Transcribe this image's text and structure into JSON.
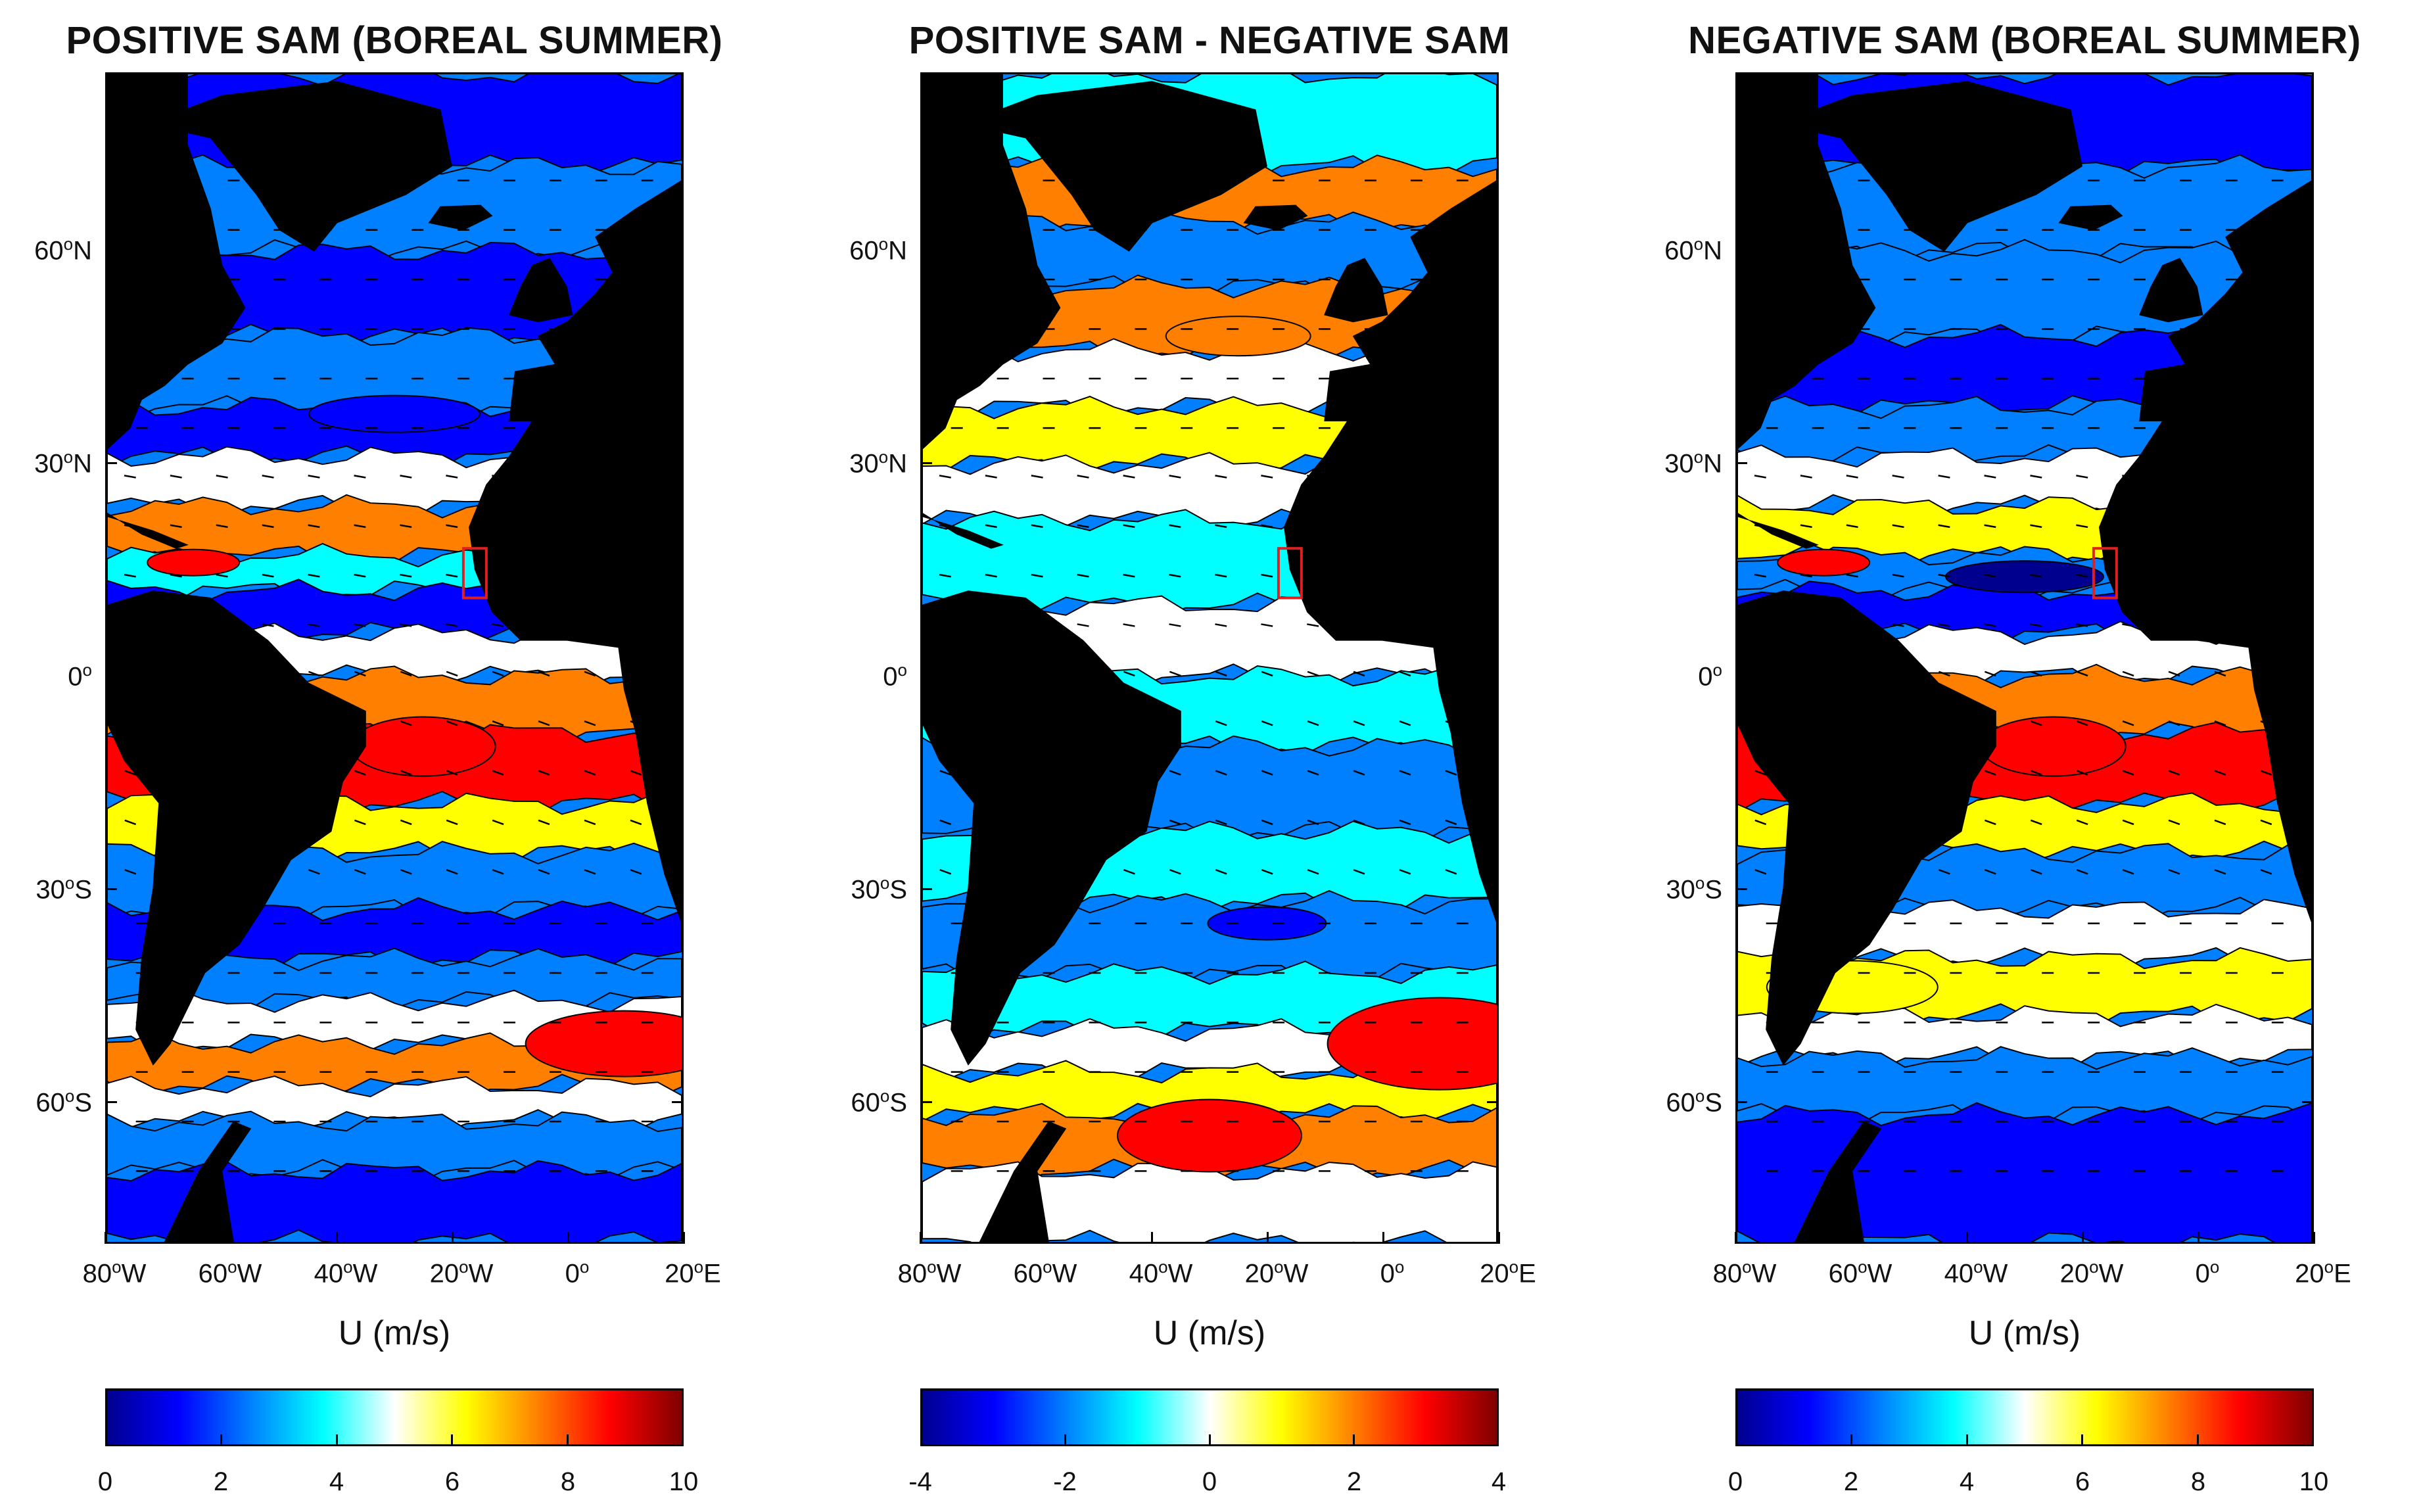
{
  "panels": [
    {
      "title": "POSITIVE SAM (BOREAL SUMMER)",
      "xlabel": "U (m/s)",
      "colorbar": {
        "min": 0,
        "max": 10,
        "ticks": [
          "0",
          "2",
          "4",
          "6",
          "8",
          "10"
        ]
      }
    },
    {
      "title": "POSITIVE SAM - NEGATIVE SAM",
      "xlabel": "U (m/s)",
      "colorbar": {
        "min": -4,
        "max": 4,
        "ticks": [
          "-4",
          "-2",
          "0",
          "2",
          "4"
        ]
      }
    },
    {
      "title": "NEGATIVE SAM (BOREAL SUMMER)",
      "xlabel": "U (m/s)",
      "colorbar": {
        "min": 0,
        "max": 10,
        "ticks": [
          "0",
          "2",
          "4",
          "6",
          "8",
          "10"
        ]
      }
    }
  ],
  "lat_ticks": [
    {
      "deg": "60",
      "hemi": "N",
      "lat": 60
    },
    {
      "deg": "30",
      "hemi": "N",
      "lat": 30
    },
    {
      "deg": "0",
      "hemi": "",
      "lat": 0
    },
    {
      "deg": "30",
      "hemi": "S",
      "lat": -30
    },
    {
      "deg": "60",
      "hemi": "S",
      "lat": -60
    }
  ],
  "lon_ticks": [
    {
      "deg": "80",
      "hemi": "W",
      "lon": -80
    },
    {
      "deg": "60",
      "hemi": "W",
      "lon": -60
    },
    {
      "deg": "40",
      "hemi": "W",
      "lon": -40
    },
    {
      "deg": "20",
      "hemi": "W",
      "lon": -20
    },
    {
      "deg": "0",
      "hemi": "",
      "lon": 0
    },
    {
      "deg": "20",
      "hemi": "E",
      "lon": 20
    }
  ],
  "map_extent": {
    "lon": [
      -80,
      20
    ],
    "lat": [
      -80,
      85
    ]
  },
  "highlight_box": {
    "lon": [
      -18,
      -14
    ],
    "lat": [
      11,
      18
    ],
    "color": "#e02020"
  },
  "colormap": [
    "#00008f",
    "#0000ff",
    "#0080ff",
    "#00ffff",
    "#ffffff",
    "#ffff00",
    "#ff8000",
    "#ff0000",
    "#800000"
  ],
  "land_color": "#000000"
}
